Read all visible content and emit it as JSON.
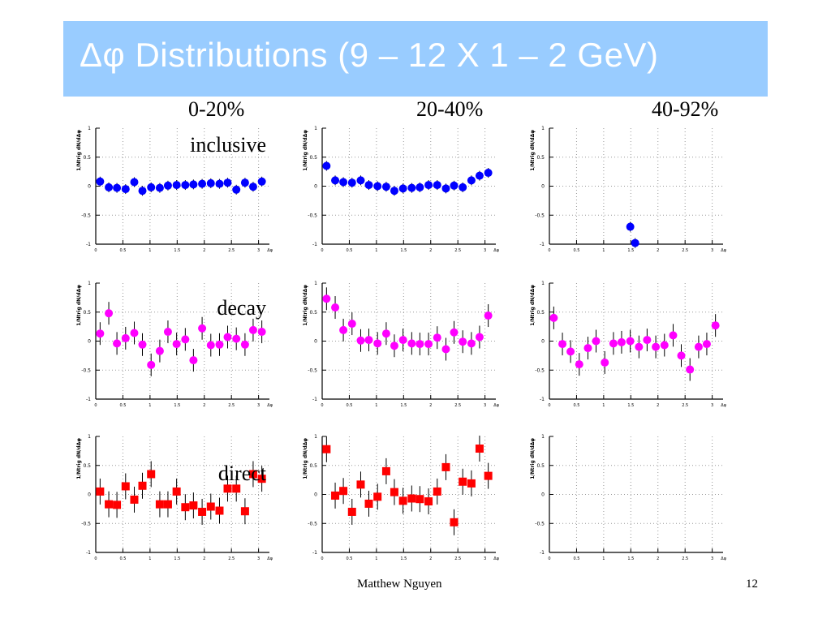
{
  "slide": {
    "title": "Δφ Distributions (9 – 12 X 1 – 2 GeV)",
    "author": "Matthew Nguyen",
    "page_number": "12",
    "accent_color": "#99ccff",
    "title_color": "#ffffff"
  },
  "columns": [
    "0-20%",
    "20-40%",
    "40-92%"
  ],
  "rows": [
    {
      "label": "inclusive",
      "color": "#0000ff"
    },
    {
      "label": "decay",
      "color": "#ff00ff"
    },
    {
      "label": "direct",
      "color": "#ff0000"
    }
  ],
  "axes": {
    "ylabel": "1/Ntrig dN/dΔφ",
    "xlabel": "Δφ",
    "yticks": [
      "1",
      "0.5",
      "0",
      "-0.5",
      "-1"
    ],
    "xticks": [
      "0",
      "0.5",
      "1",
      "1.5",
      "2",
      "2.5",
      "3"
    ]
  },
  "chart_data": [
    {
      "type": "scatter",
      "row": 0,
      "col": 0,
      "row_label": "inclusive",
      "col_label": "0-20%",
      "xlim": [
        0,
        3.2
      ],
      "ylim": [
        -1,
        1
      ],
      "x": [
        0.08,
        0.24,
        0.39,
        0.55,
        0.71,
        0.86,
        1.02,
        1.18,
        1.33,
        1.49,
        1.65,
        1.8,
        1.96,
        2.12,
        2.28,
        2.43,
        2.59,
        2.75,
        2.9,
        3.06
      ],
      "y": [
        0.08,
        -0.02,
        -0.03,
        -0.05,
        0.07,
        -0.08,
        -0.02,
        -0.03,
        0.01,
        0.02,
        0.02,
        0.03,
        0.04,
        0.05,
        0.04,
        0.06,
        -0.06,
        0.06,
        -0.01,
        0.08
      ]
    },
    {
      "type": "scatter",
      "row": 0,
      "col": 1,
      "row_label": "inclusive",
      "col_label": "20-40%",
      "xlim": [
        0,
        3.2
      ],
      "ylim": [
        -1,
        1
      ],
      "x": [
        0.08,
        0.24,
        0.39,
        0.55,
        0.71,
        0.86,
        1.02,
        1.18,
        1.33,
        1.49,
        1.65,
        1.8,
        1.96,
        2.12,
        2.28,
        2.43,
        2.59,
        2.75,
        2.9,
        3.06
      ],
      "y": [
        0.35,
        0.1,
        0.07,
        0.06,
        0.1,
        0.02,
        0.0,
        -0.01,
        -0.08,
        -0.04,
        -0.03,
        -0.02,
        0.02,
        0.02,
        -0.04,
        0.01,
        -0.02,
        0.1,
        0.18,
        0.23
      ]
    },
    {
      "type": "scatter",
      "row": 0,
      "col": 2,
      "row_label": "inclusive",
      "col_label": "40-92%",
      "xlim": [
        0,
        3.2
      ],
      "ylim": [
        -1,
        1
      ],
      "x": [
        1.49,
        1.58
      ],
      "y": [
        -0.7,
        -0.98
      ]
    },
    {
      "type": "scatter",
      "row": 1,
      "col": 0,
      "row_label": "decay",
      "col_label": "0-20%",
      "xlim": [
        0,
        3.2
      ],
      "ylim": [
        -1,
        1
      ],
      "x": [
        0.08,
        0.24,
        0.39,
        0.55,
        0.71,
        0.86,
        1.02,
        1.18,
        1.33,
        1.49,
        1.65,
        1.8,
        1.96,
        2.12,
        2.28,
        2.43,
        2.59,
        2.75,
        2.9,
        3.06
      ],
      "y": [
        0.13,
        0.48,
        -0.04,
        0.05,
        0.14,
        -0.06,
        -0.41,
        -0.17,
        0.16,
        -0.05,
        0.03,
        -0.33,
        0.22,
        -0.07,
        -0.06,
        0.07,
        0.04,
        -0.06,
        0.19,
        0.16
      ]
    },
    {
      "type": "scatter",
      "row": 1,
      "col": 1,
      "row_label": "decay",
      "col_label": "20-40%",
      "xlim": [
        0,
        3.2
      ],
      "ylim": [
        -1,
        1
      ],
      "x": [
        0.08,
        0.24,
        0.39,
        0.55,
        0.71,
        0.86,
        1.02,
        1.18,
        1.33,
        1.49,
        1.65,
        1.8,
        1.96,
        2.12,
        2.28,
        2.43,
        2.59,
        2.75,
        2.9,
        3.06
      ],
      "y": [
        0.73,
        0.58,
        0.19,
        0.3,
        0.01,
        0.02,
        -0.04,
        0.13,
        -0.08,
        0.02,
        -0.04,
        -0.05,
        -0.05,
        0.06,
        -0.14,
        0.15,
        -0.01,
        -0.04,
        0.07,
        0.44
      ]
    },
    {
      "type": "scatter",
      "row": 1,
      "col": 2,
      "row_label": "decay",
      "col_label": "40-92%",
      "xlim": [
        0,
        3.2
      ],
      "ylim": [
        -1,
        1
      ],
      "x": [
        0.08,
        0.24,
        0.39,
        0.55,
        0.71,
        0.86,
        1.02,
        1.18,
        1.33,
        1.49,
        1.65,
        1.8,
        1.96,
        2.12,
        2.28,
        2.43,
        2.59,
        2.75,
        2.9,
        3.06
      ],
      "y": [
        0.4,
        -0.05,
        -0.18,
        -0.4,
        -0.12,
        0.0,
        -0.37,
        -0.04,
        -0.02,
        0.0,
        -0.1,
        0.02,
        -0.1,
        -0.07,
        0.1,
        -0.25,
        -0.49,
        -0.1,
        -0.05,
        0.27
      ]
    },
    {
      "type": "scatter",
      "row": 2,
      "col": 0,
      "row_label": "direct",
      "col_label": "0-20%",
      "xlim": [
        0,
        3.2
      ],
      "ylim": [
        -1,
        1
      ],
      "x": [
        0.08,
        0.24,
        0.39,
        0.55,
        0.71,
        0.86,
        1.02,
        1.18,
        1.33,
        1.49,
        1.65,
        1.8,
        1.96,
        2.12,
        2.28,
        2.43,
        2.59,
        2.75,
        2.9,
        3.06
      ],
      "y": [
        0.05,
        -0.17,
        -0.18,
        0.14,
        -0.09,
        0.15,
        0.35,
        -0.17,
        -0.17,
        0.05,
        -0.22,
        -0.19,
        -0.3,
        -0.21,
        -0.28,
        0.1,
        0.1,
        -0.29,
        0.35,
        0.27
      ]
    },
    {
      "type": "scatter",
      "row": 2,
      "col": 1,
      "row_label": "direct",
      "col_label": "20-40%",
      "xlim": [
        0,
        3.2
      ],
      "ylim": [
        -1,
        1
      ],
      "x": [
        0.08,
        0.24,
        0.39,
        0.55,
        0.71,
        0.86,
        1.02,
        1.18,
        1.33,
        1.49,
        1.65,
        1.8,
        1.96,
        2.12,
        2.28,
        2.43,
        2.59,
        2.75,
        2.9,
        3.06
      ],
      "y": [
        0.78,
        -0.02,
        0.06,
        -0.3,
        0.17,
        -0.16,
        -0.04,
        0.4,
        0.04,
        -0.11,
        -0.07,
        -0.08,
        -0.12,
        0.05,
        0.47,
        -0.48,
        0.22,
        0.19,
        0.79,
        0.32
      ]
    },
    {
      "type": "scatter",
      "row": 2,
      "col": 2,
      "row_label": "direct",
      "col_label": "40-92%",
      "xlim": [
        0,
        3.2
      ],
      "ylim": [
        -1,
        1
      ],
      "x": [],
      "y": []
    }
  ]
}
